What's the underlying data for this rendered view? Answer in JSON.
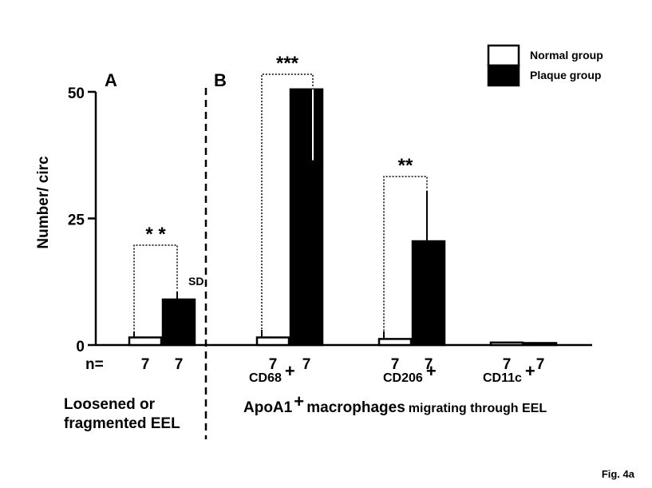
{
  "chart_data": {
    "type": "bar",
    "panels": [
      {
        "label": "A",
        "groups": [
          {
            "category_lines": [
              "Loosened or",
              "fragmented EEL"
            ],
            "normal": 1.5,
            "normal_sd": 1.2,
            "plaque": 9,
            "plaque_sd": 1.6,
            "n_normal": "7",
            "n_plaque": "7",
            "significance": "* *",
            "sd_label": "SD"
          }
        ]
      },
      {
        "label": "B",
        "groups": [
          {
            "category": "CD68",
            "sup": "+",
            "normal": 1.5,
            "normal_sd": 1.5,
            "plaque": 50.5,
            "plaque_sd": 14,
            "n_normal": "7",
            "n_plaque": "7",
            "significance": "***",
            "sd_label": "SD"
          },
          {
            "category": "CD206",
            "sup": "+",
            "normal": 1.2,
            "normal_sd": 1.5,
            "plaque": 20.5,
            "plaque_sd": 10,
            "n_normal": "7",
            "n_plaque": "7",
            "significance": "**"
          },
          {
            "category": "CD11c",
            "sup": "+",
            "normal": 0.5,
            "normal_sd": 0,
            "plaque": 0.4,
            "plaque_sd": 0,
            "n_normal": "7",
            "n_plaque": "7",
            "significance": ""
          }
        ],
        "title_parts": [
          "ApoA1",
          "+",
          " macrophages",
          "migrating through EEL"
        ]
      }
    ],
    "ylabel": "Number/ circ",
    "ylim": [
      0,
      50
    ],
    "yticks": [
      "0",
      "25",
      "50"
    ],
    "n_label": "n=",
    "series": [
      {
        "name": "Normal group",
        "color": "#ffffff"
      },
      {
        "name": "Plaque group",
        "color": "#000000"
      }
    ],
    "legend_position": "top-right",
    "grid": false
  },
  "figure_label": "Fig. 4a"
}
